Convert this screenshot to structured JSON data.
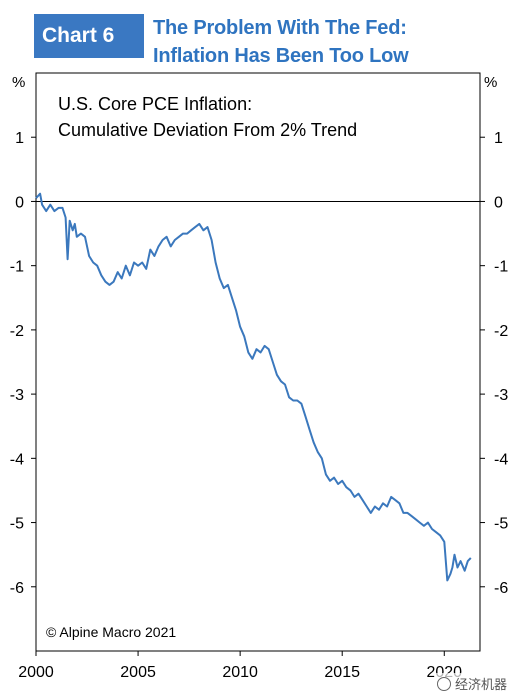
{
  "header": {
    "badge": "Chart 6",
    "title_line1": "The Problem With The Fed:",
    "title_line2": "Inflation Has Been Too Low"
  },
  "watermark": "经济机器",
  "chart_data": {
    "type": "line",
    "title": "U.S. Core PCE Inflation:",
    "subtitle": "Cumulative Deviation From 2% Trend",
    "source": "© Alpine Macro 2021",
    "unit_left": "%",
    "unit_right": "%",
    "xlim": [
      2000,
      2021.75
    ],
    "ylim": [
      -7,
      2
    ],
    "yticks": [
      1,
      0,
      -1,
      -2,
      -3,
      -4,
      -5,
      -6
    ],
    "xticks": [
      2000,
      2005,
      2010,
      2015,
      2020
    ],
    "zero_line": true,
    "grid": false,
    "line_color": "#3b78bd",
    "series": [
      {
        "x": [
          2000.0,
          2000.2,
          2000.3,
          2000.5,
          2000.7,
          2000.9,
          2001.1,
          2001.3,
          2001.45,
          2001.55,
          2001.65,
          2001.8,
          2001.9,
          2002.0,
          2002.2,
          2002.4,
          2002.6,
          2002.8,
          2003.0,
          2003.2,
          2003.4,
          2003.6,
          2003.8,
          2004.0,
          2004.2,
          2004.4,
          2004.6,
          2004.8,
          2005.0,
          2005.2,
          2005.4,
          2005.6,
          2005.8,
          2006.0,
          2006.2,
          2006.4,
          2006.6,
          2006.8,
          2007.0,
          2007.2,
          2007.4,
          2007.6,
          2007.8,
          2008.0,
          2008.2,
          2008.4,
          2008.6,
          2008.8,
          2009.0,
          2009.2,
          2009.4,
          2009.6,
          2009.8,
          2010.0,
          2010.2,
          2010.4,
          2010.6,
          2010.8,
          2011.0,
          2011.2,
          2011.4,
          2011.6,
          2011.8,
          2012.0,
          2012.2,
          2012.4,
          2012.6,
          2012.8,
          2013.0,
          2013.2,
          2013.4,
          2013.6,
          2013.8,
          2014.0,
          2014.2,
          2014.4,
          2014.6,
          2014.8,
          2015.0,
          2015.2,
          2015.4,
          2015.6,
          2015.8,
          2016.0,
          2016.2,
          2016.4,
          2016.6,
          2016.8,
          2017.0,
          2017.2,
          2017.4,
          2017.6,
          2017.8,
          2018.0,
          2018.2,
          2018.4,
          2018.6,
          2018.8,
          2019.0,
          2019.2,
          2019.4,
          2019.6,
          2019.8,
          2020.0,
          2020.15,
          2020.3,
          2020.4,
          2020.5,
          2020.65,
          2020.8,
          2021.0,
          2021.15,
          2021.3
        ],
        "y": [
          0.05,
          0.12,
          -0.05,
          -0.15,
          -0.05,
          -0.15,
          -0.1,
          -0.1,
          -0.25,
          -0.9,
          -0.3,
          -0.45,
          -0.35,
          -0.55,
          -0.5,
          -0.55,
          -0.85,
          -0.95,
          -1.0,
          -1.15,
          -1.25,
          -1.3,
          -1.25,
          -1.1,
          -1.2,
          -1.0,
          -1.15,
          -0.95,
          -1.0,
          -0.95,
          -1.05,
          -0.75,
          -0.85,
          -0.7,
          -0.6,
          -0.55,
          -0.7,
          -0.6,
          -0.55,
          -0.5,
          -0.5,
          -0.45,
          -0.4,
          -0.35,
          -0.45,
          -0.4,
          -0.6,
          -0.95,
          -1.2,
          -1.35,
          -1.3,
          -1.5,
          -1.7,
          -1.95,
          -2.1,
          -2.35,
          -2.45,
          -2.3,
          -2.35,
          -2.25,
          -2.3,
          -2.5,
          -2.7,
          -2.8,
          -2.85,
          -3.05,
          -3.1,
          -3.1,
          -3.15,
          -3.35,
          -3.55,
          -3.75,
          -3.9,
          -4.0,
          -4.25,
          -4.35,
          -4.3,
          -4.4,
          -4.35,
          -4.45,
          -4.5,
          -4.6,
          -4.55,
          -4.65,
          -4.75,
          -4.85,
          -4.75,
          -4.8,
          -4.7,
          -4.75,
          -4.6,
          -4.65,
          -4.7,
          -4.85,
          -4.85,
          -4.9,
          -4.95,
          -5.0,
          -5.05,
          -5.0,
          -5.1,
          -5.15,
          -5.2,
          -5.3,
          -5.9,
          -5.8,
          -5.7,
          -5.5,
          -5.7,
          -5.6,
          -5.75,
          -5.6,
          -5.55
        ]
      }
    ]
  }
}
